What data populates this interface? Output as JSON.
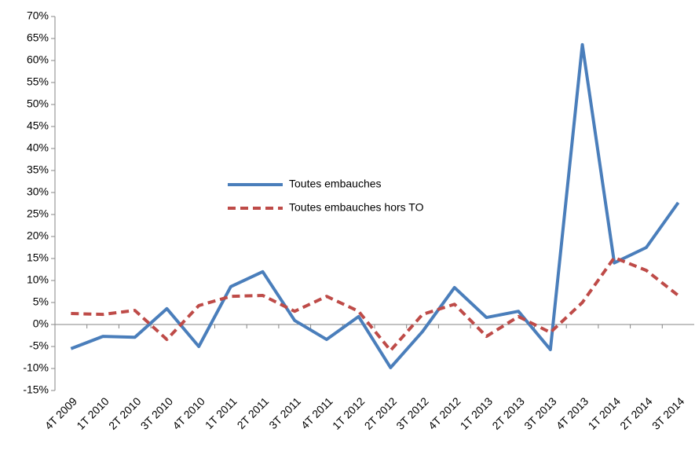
{
  "chart_data": {
    "type": "line",
    "categories": [
      "4T 2009",
      "1T 2010",
      "2T 2010",
      "3T 2010",
      "4T 2010",
      "1T 2011",
      "2T 2011",
      "3T 2011",
      "4T 2011",
      "1T 2012",
      "2T 2012",
      "3T 2012",
      "4T 2012",
      "1T 2013",
      "2T 2013",
      "3T 2013",
      "4T 2013",
      "1T 2014",
      "2T 2014",
      "3T 2014"
    ],
    "series": [
      {
        "name": "Toutes embauches",
        "color": "#4a7ebb",
        "style": "solid",
        "values": [
          -5.5,
          -2.7,
          -2.9,
          3.6,
          -5.0,
          8.6,
          12.0,
          0.9,
          -3.4,
          1.8,
          -9.8,
          -1.6,
          8.4,
          1.6,
          3.0,
          -5.7,
          63.6,
          14.0,
          17.5,
          27.7
        ]
      },
      {
        "name": "Toutes embauches hors TO",
        "color": "#be4b48",
        "style": "dashed",
        "values": [
          2.5,
          2.3,
          3.2,
          -3.4,
          4.3,
          6.4,
          6.6,
          3.0,
          6.4,
          3.0,
          -5.9,
          2.3,
          4.6,
          -2.7,
          1.8,
          -1.8,
          5.0,
          15.2,
          12.3,
          6.6
        ]
      }
    ],
    "ylim": [
      -15,
      70
    ],
    "yticks": [
      {
        "value": -15,
        "label": "-15%"
      },
      {
        "value": -10,
        "label": "-10%"
      },
      {
        "value": -5,
        "label": "-5%"
      },
      {
        "value": 0,
        "label": "0%"
      },
      {
        "value": 5,
        "label": "5%"
      },
      {
        "value": 10,
        "label": "10%"
      },
      {
        "value": 15,
        "label": "15%"
      },
      {
        "value": 20,
        "label": "20%"
      },
      {
        "value": 25,
        "label": "25%"
      },
      {
        "value": 30,
        "label": "30%"
      },
      {
        "value": 35,
        "label": "35%"
      },
      {
        "value": 40,
        "label": "40%"
      },
      {
        "value": 45,
        "label": "45%"
      },
      {
        "value": 50,
        "label": "50%"
      },
      {
        "value": 55,
        "label": "55%"
      },
      {
        "value": 60,
        "label": "60%"
      },
      {
        "value": 65,
        "label": "65%"
      },
      {
        "value": 70,
        "label": "70%"
      }
    ],
    "grid": false,
    "legend_position": "center"
  }
}
